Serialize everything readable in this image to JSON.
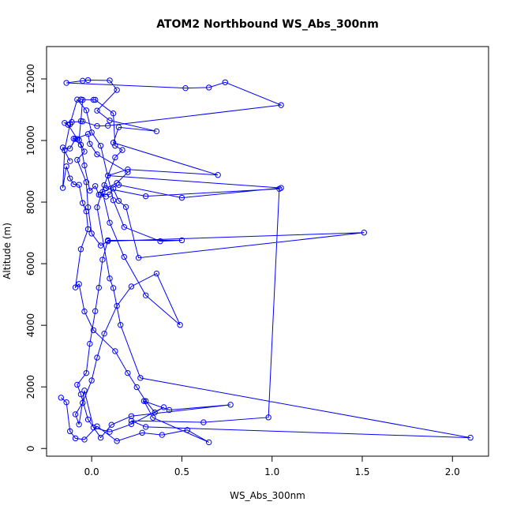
{
  "chart_data": {
    "type": "scatter",
    "title": "ATOM2 Northbound WS_Abs_300nm",
    "xlabel": "WS_Abs_300nm",
    "ylabel": "Altitude (m)",
    "xlim": [
      -0.25,
      2.2
    ],
    "ylim": [
      -250,
      13050
    ],
    "x_ticks": [
      0.0,
      0.5,
      1.0,
      1.5,
      2.0
    ],
    "x_tick_labels": [
      "0.0",
      "0.5",
      "1.0",
      "1.5",
      "2.0"
    ],
    "y_ticks": [
      0,
      2000,
      4000,
      6000,
      8000,
      10000,
      12000
    ],
    "y_tick_labels": [
      "0",
      "2000",
      "4000",
      "6000",
      "8000",
      "10000",
      "12000"
    ],
    "grid": false,
    "legend": "none",
    "series_color": "#0000ff",
    "connected": true,
    "points": [
      [
        -0.17,
        1650
      ],
      [
        -0.14,
        1500
      ],
      [
        -0.12,
        560
      ],
      [
        -0.09,
        330
      ],
      [
        -0.04,
        290
      ],
      [
        0.03,
        720
      ],
      [
        0.14,
        240
      ],
      [
        0.28,
        510
      ],
      [
        0.39,
        440
      ],
      [
        0.53,
        600
      ],
      [
        0.65,
        200
      ],
      [
        0.34,
        1000
      ],
      [
        0.29,
        1540
      ],
      [
        0.43,
        1250
      ],
      [
        0.77,
        1420
      ],
      [
        0.22,
        1050
      ],
      [
        0.11,
        770
      ],
      [
        0.05,
        350
      ],
      [
        -0.02,
        940
      ],
      [
        -0.06,
        1760
      ],
      [
        -0.08,
        2070
      ],
      [
        -0.03,
        2450
      ],
      [
        -0.01,
        3400
      ],
      [
        0.02,
        4460
      ],
      [
        0.04,
        5220
      ],
      [
        0.06,
        6130
      ],
      [
        0.09,
        6760
      ],
      [
        0.5,
        6760
      ],
      [
        0.38,
        6730
      ],
      [
        0.18,
        7190
      ],
      [
        0.12,
        8060
      ],
      [
        0.05,
        9830
      ],
      [
        0.0,
        10260
      ],
      [
        -0.03,
        10980
      ],
      [
        -0.08,
        11330
      ],
      [
        -0.12,
        10530
      ],
      [
        -0.15,
        9680
      ],
      [
        -0.16,
        8460
      ],
      [
        -0.14,
        9160
      ],
      [
        -0.12,
        8770
      ],
      [
        -0.1,
        8580
      ],
      [
        -0.07,
        8560
      ],
      [
        -0.05,
        7970
      ],
      [
        -0.03,
        7700
      ],
      [
        -0.02,
        7120
      ],
      [
        -0.06,
        6470
      ],
      [
        -0.09,
        5230
      ],
      [
        -0.07,
        5340
      ],
      [
        -0.04,
        4450
      ],
      [
        0.01,
        3840
      ],
      [
        0.13,
        3160
      ],
      [
        0.2,
        2450
      ],
      [
        0.25,
        1990
      ],
      [
        0.3,
        1540
      ],
      [
        0.35,
        1170
      ],
      [
        0.4,
        1340
      ],
      [
        0.22,
        790
      ],
      [
        0.1,
        540
      ],
      [
        0.01,
        680
      ],
      [
        -0.04,
        1880
      ],
      [
        -0.07,
        780
      ],
      [
        -0.09,
        1110
      ],
      [
        -0.05,
        1480
      ],
      [
        0.0,
        2210
      ],
      [
        0.03,
        2950
      ],
      [
        0.07,
        3730
      ],
      [
        0.14,
        4630
      ],
      [
        0.22,
        5260
      ],
      [
        0.36,
        5680
      ],
      [
        0.49,
        4010
      ],
      [
        0.3,
        4970
      ],
      [
        0.18,
        6220
      ],
      [
        0.1,
        7330
      ],
      [
        0.06,
        8330
      ],
      [
        0.15,
        8560
      ],
      [
        0.5,
        8140
      ],
      [
        1.05,
        8460
      ],
      [
        0.09,
        8860
      ],
      [
        0.2,
        9060
      ],
      [
        0.7,
        8880
      ],
      [
        0.12,
        9930
      ],
      [
        0.15,
        10430
      ],
      [
        0.36,
        10300
      ],
      [
        0.1,
        10650
      ],
      [
        0.03,
        10970
      ],
      [
        0.14,
        11640
      ],
      [
        0.1,
        11950
      ],
      [
        -0.02,
        11960
      ],
      [
        -0.05,
        11940
      ],
      [
        -0.14,
        11870
      ],
      [
        0.52,
        11700
      ],
      [
        0.65,
        11720
      ],
      [
        0.74,
        11890
      ],
      [
        1.05,
        11150
      ],
      [
        0.09,
        10480
      ],
      [
        0.03,
        10470
      ],
      [
        -0.05,
        10620
      ],
      [
        -0.11,
        10600
      ],
      [
        -0.15,
        10570
      ],
      [
        -0.13,
        10510
      ],
      [
        -0.08,
        10050
      ],
      [
        -0.1,
        10060
      ],
      [
        -0.06,
        9860
      ],
      [
        -0.04,
        9190
      ],
      [
        -0.01,
        8370
      ],
      [
        0.02,
        8520
      ],
      [
        0.04,
        8240
      ],
      [
        0.08,
        8180
      ],
      [
        0.05,
        8240
      ],
      [
        0.1,
        8250
      ],
      [
        0.12,
        8440
      ],
      [
        0.15,
        8040
      ],
      [
        0.19,
        7840
      ],
      [
        0.26,
        6190
      ],
      [
        1.51,
        7010
      ],
      [
        0.09,
        6730
      ],
      [
        0.05,
        6590
      ],
      [
        0.0,
        6980
      ],
      [
        -0.02,
        7830
      ],
      [
        -0.03,
        8650
      ],
      [
        -0.08,
        9370
      ],
      [
        -0.04,
        9640
      ],
      [
        -0.07,
        10010
      ],
      [
        -0.06,
        10630
      ],
      [
        -0.05,
        11320
      ],
      [
        -0.06,
        11330
      ],
      [
        0.01,
        11320
      ],
      [
        0.02,
        11320
      ],
      [
        0.12,
        10880
      ],
      [
        0.13,
        9830
      ],
      [
        0.17,
        9690
      ],
      [
        0.13,
        9450
      ],
      [
        0.07,
        8550
      ],
      [
        0.03,
        7830
      ],
      [
        0.1,
        5520
      ],
      [
        0.12,
        5210
      ],
      [
        0.16,
        4010
      ],
      [
        0.27,
        2290
      ],
      [
        2.1,
        350
      ],
      [
        0.3,
        700
      ],
      [
        0.22,
        900
      ],
      [
        0.62,
        850
      ],
      [
        0.98,
        1010
      ],
      [
        1.04,
        8430
      ],
      [
        0.3,
        8190
      ],
      [
        0.08,
        8450
      ],
      [
        0.14,
        8620
      ],
      [
        0.2,
        8970
      ],
      [
        0.03,
        9550
      ],
      [
        -0.01,
        9890
      ],
      [
        -0.02,
        10210
      ],
      [
        -0.09,
        10050
      ],
      [
        -0.12,
        9740
      ],
      [
        -0.16,
        9770
      ],
      [
        -0.12,
        9330
      ]
    ]
  }
}
